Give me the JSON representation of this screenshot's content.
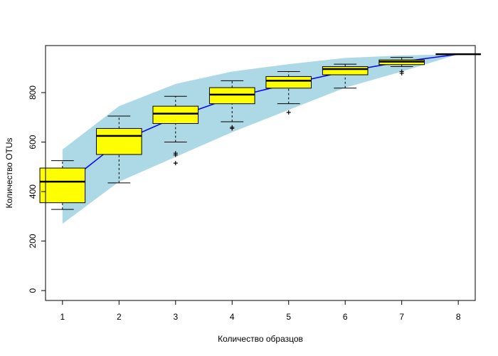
{
  "chart_data": {
    "type": "box",
    "title": "",
    "xlabel": "Количество образцов",
    "ylabel": "Количество OTUs",
    "xlim": [
      0.7,
      8.3
    ],
    "ylim": [
      -40,
      990
    ],
    "x_ticks": [
      1,
      2,
      3,
      4,
      5,
      6,
      7,
      8
    ],
    "y_ticks": [
      0,
      200,
      400,
      600,
      800
    ],
    "colors": {
      "band": "#add8e6",
      "mean_line": "#0000ff",
      "box_fill": "#ffff00",
      "box_stroke": "#000000"
    },
    "band": {
      "x": [
        1,
        2,
        3,
        4,
        5,
        6,
        7,
        8
      ],
      "lower": [
        270,
        440,
        540,
        640,
        730,
        820,
        885,
        955
      ],
      "upper": [
        570,
        745,
        835,
        885,
        915,
        940,
        950,
        955
      ]
    },
    "mean_line": {
      "x": [
        1,
        2,
        3,
        4,
        5,
        6,
        7,
        8
      ],
      "y": [
        420,
        600,
        700,
        780,
        835,
        885,
        925,
        955
      ]
    },
    "boxes": [
      {
        "x": 1,
        "whisker_low": 328,
        "q1": 355,
        "median": 440,
        "q3": 495,
        "whisker_high": 525,
        "outliers": []
      },
      {
        "x": 2,
        "whisker_low": 435,
        "q1": 550,
        "median": 625,
        "q3": 655,
        "whisker_high": 705,
        "outliers": []
      },
      {
        "x": 3,
        "whisker_low": 600,
        "q1": 675,
        "median": 715,
        "q3": 745,
        "whisker_high": 785,
        "outliers": [
          555,
          548,
          515
        ]
      },
      {
        "x": 4,
        "whisker_low": 682,
        "q1": 755,
        "median": 792,
        "q3": 820,
        "whisker_high": 848,
        "outliers": [
          660,
          655
        ]
      },
      {
        "x": 5,
        "whisker_low": 755,
        "q1": 818,
        "median": 848,
        "q3": 865,
        "whisker_high": 885,
        "outliers": [
          720
        ]
      },
      {
        "x": 6,
        "whisker_low": 818,
        "q1": 872,
        "median": 895,
        "q3": 905,
        "whisker_high": 915,
        "outliers": []
      },
      {
        "x": 7,
        "whisker_low": 905,
        "q1": 913,
        "median": 925,
        "q3": 932,
        "whisker_high": 942,
        "outliers": [
          885,
          878
        ]
      },
      {
        "x": 8,
        "whisker_low": 955,
        "q1": 955,
        "median": 955,
        "q3": 955,
        "whisker_high": 955,
        "outliers": []
      }
    ]
  }
}
